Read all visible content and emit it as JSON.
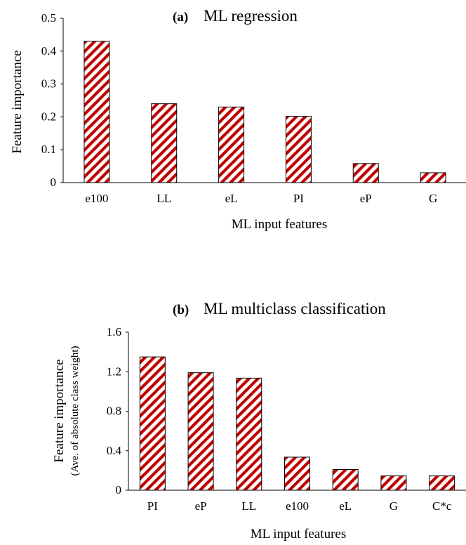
{
  "chart_data": [
    {
      "type": "bar",
      "panel": "(a)",
      "title": "ML regression",
      "xlabel": "ML input features",
      "ylabel": "Feature importance",
      "ylabel_sub": "",
      "categories": [
        "e100",
        "LL",
        "eL",
        "PI",
        "eP",
        "G"
      ],
      "values": [
        0.43,
        0.24,
        0.23,
        0.202,
        0.058,
        0.03
      ],
      "ylim": [
        0,
        0.5
      ],
      "yticks": [
        0,
        0.1,
        0.2,
        0.3,
        0.4,
        0.5
      ],
      "ytick_labels": [
        "0",
        "0.1",
        "0.2",
        "0.3",
        "0.4",
        "0.5"
      ],
      "grid": false,
      "bar_pattern": "diagonal-hatch",
      "bar_color": "#c00000"
    },
    {
      "type": "bar",
      "panel": "(b)",
      "title": "ML multiclass classification",
      "xlabel": "ML input features",
      "ylabel": "Feature importance",
      "ylabel_sub": "(Ave. of absolute class weight)",
      "categories": [
        "PI",
        "eP",
        "LL",
        "e100",
        "eL",
        "G",
        "C*c"
      ],
      "values": [
        1.35,
        1.19,
        1.135,
        0.335,
        0.21,
        0.145,
        0.145
      ],
      "ylim": [
        0,
        1.6
      ],
      "yticks": [
        0,
        0.4,
        0.8,
        1.2,
        1.6
      ],
      "ytick_labels": [
        "0",
        "0.4",
        "0.8",
        "1.2",
        "1.6"
      ],
      "grid": false,
      "bar_pattern": "diagonal-hatch",
      "bar_color": "#c00000"
    }
  ]
}
